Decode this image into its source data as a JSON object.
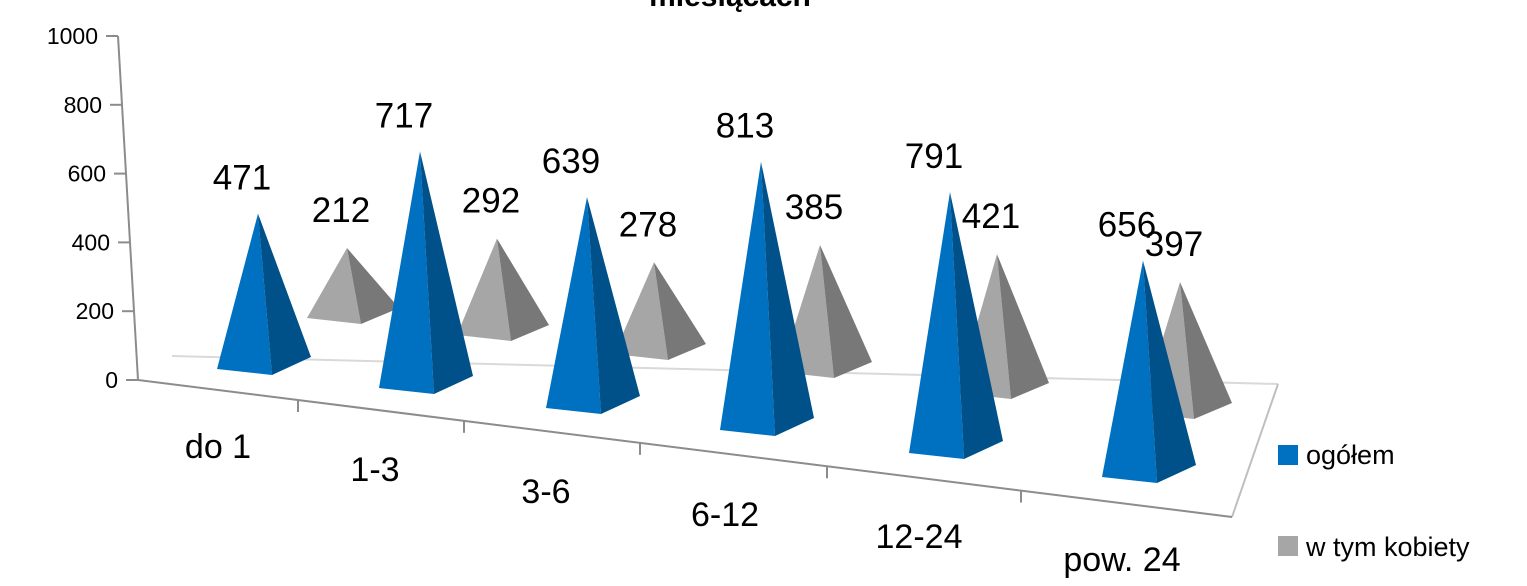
{
  "chart_data": {
    "type": "bar",
    "title": "miesiącach",
    "categories": [
      "do 1",
      "1-3",
      "3-6",
      "6-12",
      "12-24",
      "pow. 24"
    ],
    "series": [
      {
        "name": "ogółem",
        "values": [
          471,
          717,
          639,
          813,
          791,
          656
        ],
        "color": "#0070C0"
      },
      {
        "name": "w tym kobiety",
        "values": [
          212,
          292,
          278,
          385,
          421,
          397
        ],
        "color": "#A6A6A6"
      }
    ],
    "ylim": [
      0,
      1000
    ],
    "yticks": [
      "0",
      "200",
      "400",
      "600",
      "800",
      "1000"
    ],
    "grid": false,
    "legend_position": "right",
    "bar_shape": "pyramid-3d"
  }
}
